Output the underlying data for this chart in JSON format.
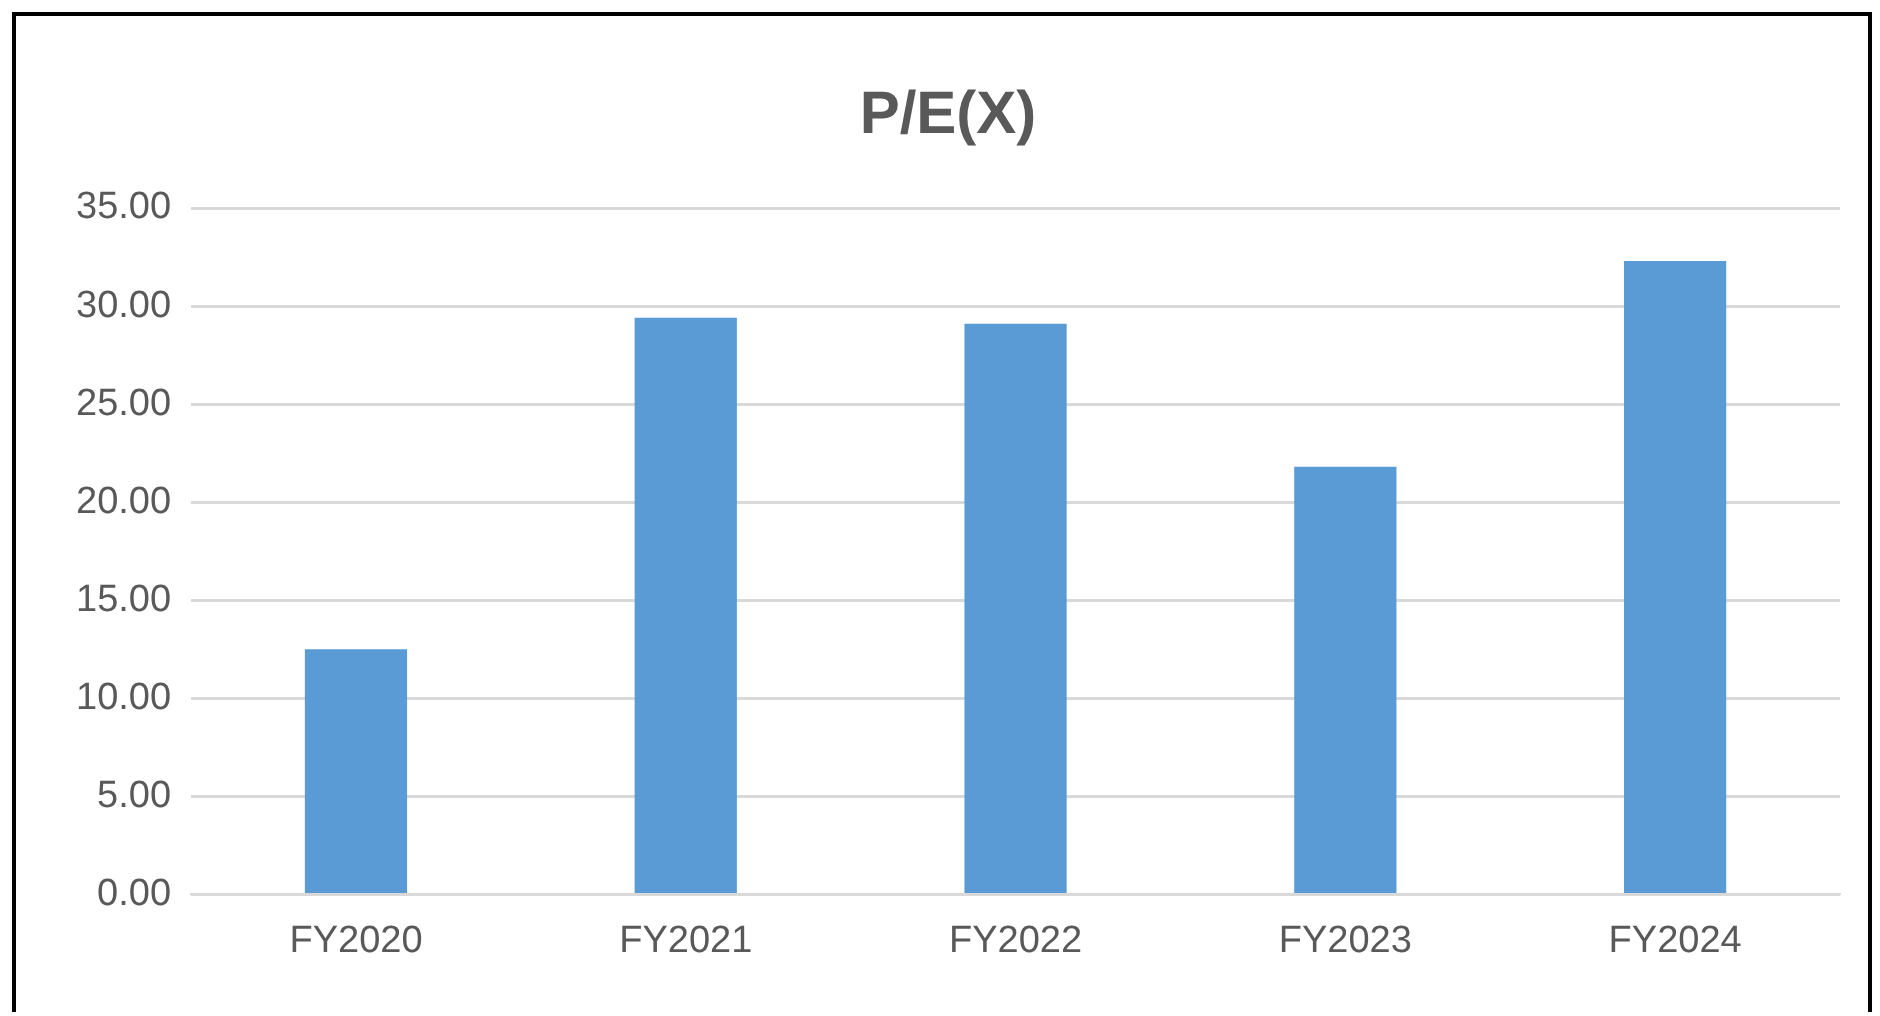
{
  "chart_data": {
    "type": "bar",
    "title": "P/E(X)",
    "categories": [
      "FY2020",
      "FY2021",
      "FY2022",
      "FY2023",
      "FY2024"
    ],
    "values": [
      12.5,
      29.4,
      29.1,
      21.8,
      32.3
    ],
    "color": "#5b9bd5",
    "ylim": [
      0,
      35
    ],
    "yticks": [
      {
        "value": 0,
        "label": "0.00"
      },
      {
        "value": 5,
        "label": "5.00"
      },
      {
        "value": 10,
        "label": "10.00"
      },
      {
        "value": 15,
        "label": "15.00"
      },
      {
        "value": 20,
        "label": "20.00"
      },
      {
        "value": 25,
        "label": "25.00"
      },
      {
        "value": 30,
        "label": "30.00"
      },
      {
        "value": 35,
        "label": "35.00"
      }
    ],
    "grid": "y"
  }
}
